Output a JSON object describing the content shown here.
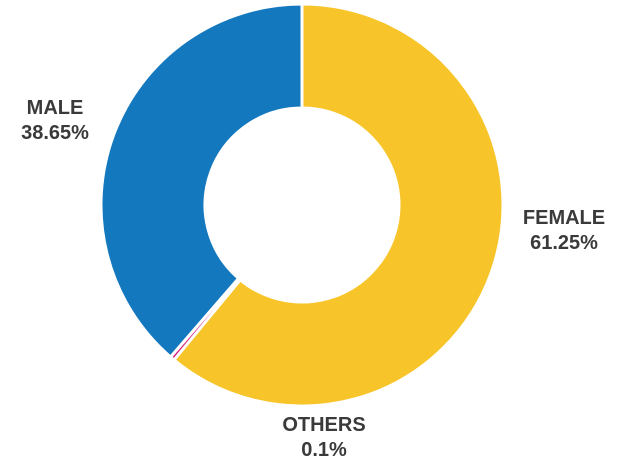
{
  "chart_data": {
    "type": "pie",
    "donut": true,
    "slices": [
      {
        "label": "FEMALE",
        "value": 61.25,
        "value_label": "61.25%",
        "color": "#f7c52a"
      },
      {
        "label": "OTHERS",
        "value": 0.1,
        "value_label": "0.1%",
        "color": "#d6197f"
      },
      {
        "label": "MALE",
        "value": 38.65,
        "value_label": "38.65%",
        "color": "#1378be"
      }
    ],
    "start_angle": "12 o'clock",
    "direction": "clockwise"
  }
}
